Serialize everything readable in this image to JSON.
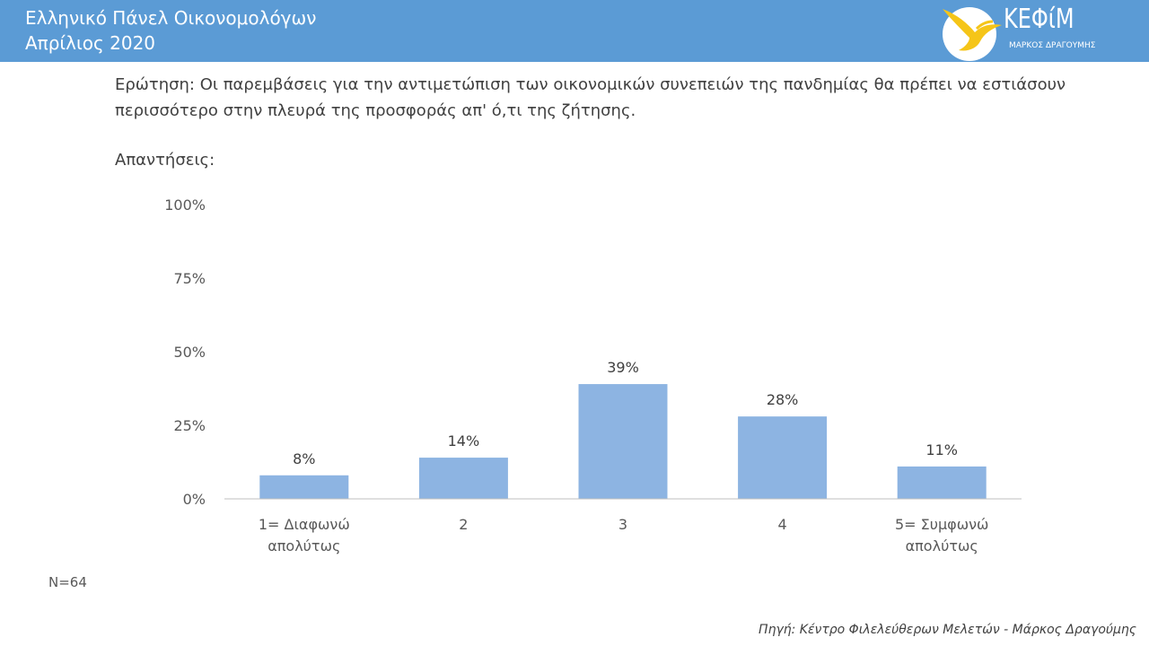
{
  "header": {
    "title_line1": "Ελληνικό Πάνελ Οικονομολόγων",
    "title_line2": "Απρίλιος 2020",
    "background_color": "#5b9bd5",
    "logo": {
      "name": "ΚΕΦίΜ",
      "subtitle": "ΜΑΡΚΟΣ ΔΡΑΓΟΥΜΗΣ",
      "icon": "bird-logo-icon",
      "accent_color": "#f5c518"
    }
  },
  "question": "Ερώτηση: Οι παρεμβάσεις για την αντιμετώπιση των οικονομικών συνεπειών της πανδημίας θα πρέπει να εστιάσουν περισσότερο στην πλευρά της προσφοράς απ' ό,τι της ζήτησης.",
  "answers_label": "Απαντήσεις:",
  "sample_size": "N=64",
  "source": "Πηγή: Κέντρο Φιλελεύθερων Μελετών - Μάρκος Δραγούμης",
  "chart_data": {
    "type": "bar",
    "categories": [
      [
        "1= Διαφωνώ",
        "απολύτως"
      ],
      [
        "2"
      ],
      [
        "3"
      ],
      [
        "4"
      ],
      [
        "5= Συμφωνώ",
        "απολύτως"
      ]
    ],
    "values": [
      8,
      14,
      39,
      28,
      11
    ],
    "data_labels": [
      "8%",
      "14%",
      "39%",
      "28%",
      "11%"
    ],
    "ylim": [
      0,
      100
    ],
    "yticks": [
      0,
      25,
      50,
      75,
      100
    ],
    "ytick_labels": [
      "0%",
      "25%",
      "50%",
      "75%",
      "100%"
    ],
    "grid": false,
    "legend": "none",
    "bar_color": "#8db4e2",
    "axis_color": "#bfbfbf",
    "title": "",
    "xlabel": "",
    "ylabel": ""
  }
}
